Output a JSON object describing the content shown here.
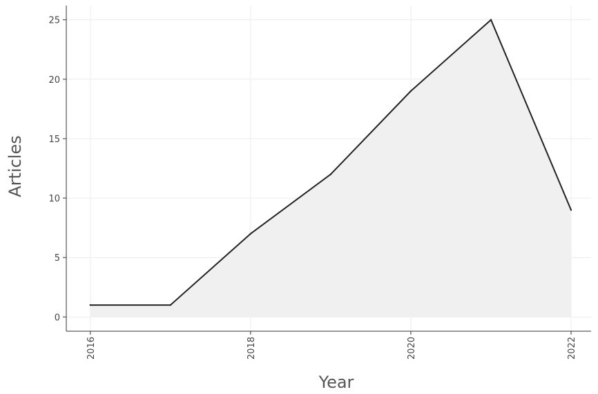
{
  "chart_data": {
    "type": "area",
    "x": [
      2016,
      2017,
      2018,
      2019,
      2020,
      2021,
      2022
    ],
    "series": [
      {
        "values": [
          1,
          1,
          7,
          12,
          19,
          25,
          9
        ]
      }
    ],
    "xlabel": "Year",
    "ylabel": "Articles",
    "xticks": [
      "2016",
      "2018",
      "2020",
      "2022"
    ],
    "yticks": [
      "0",
      "5",
      "10",
      "15",
      "20",
      "25"
    ],
    "xlim": [
      2015.7,
      2022.25
    ],
    "ylim": [
      -1.2,
      26.2
    ],
    "grid": true,
    "colors": {
      "line": "#222222",
      "fill": "#f0f0f0",
      "grid": "#ececec",
      "axis": "#333333"
    }
  }
}
